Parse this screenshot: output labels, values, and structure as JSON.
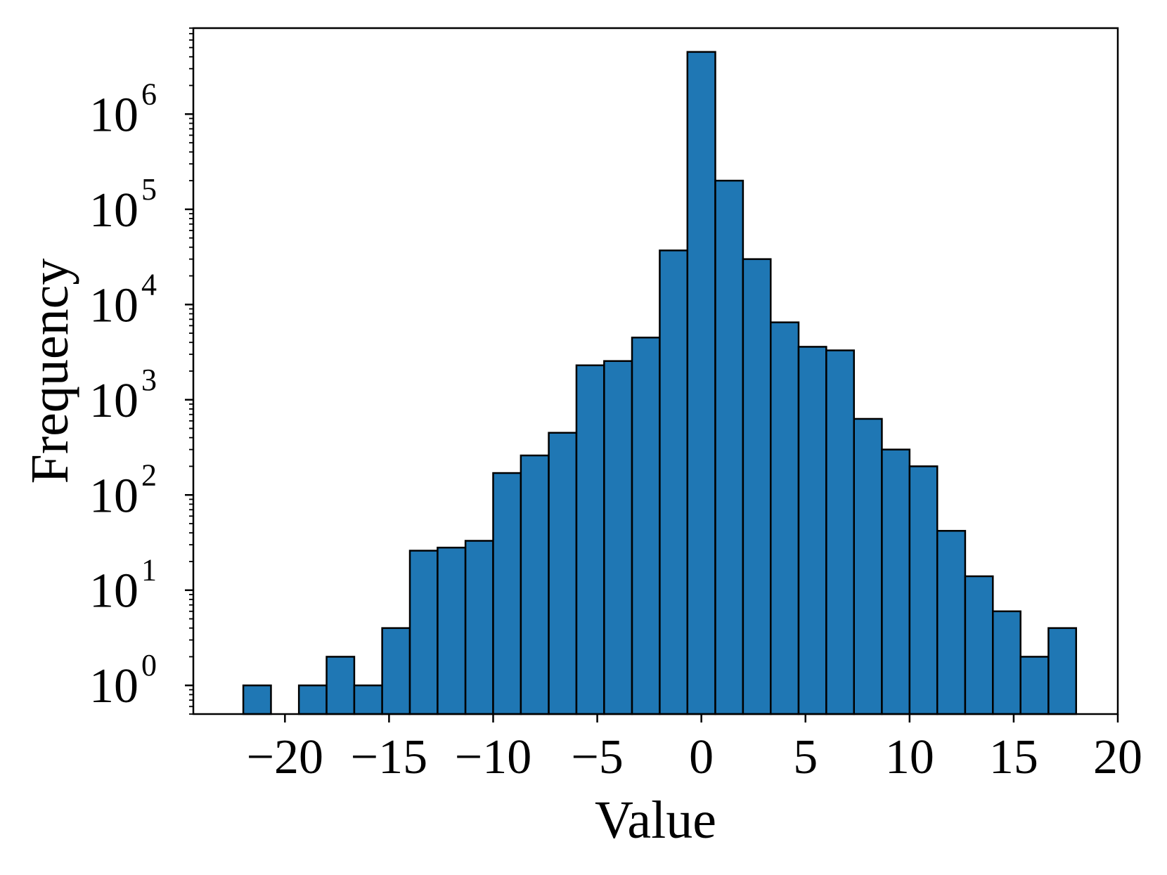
{
  "chart_data": {
    "type": "bar",
    "subtype": "histogram",
    "xlabel": "Value",
    "ylabel": "Frequency",
    "yscale": "log",
    "grid": false,
    "xlim": [
      -24.4,
      20
    ],
    "ylim": [
      0.5,
      8000000
    ],
    "xticks": [
      -20,
      -15,
      -10,
      -5,
      0,
      5,
      10,
      15,
      20
    ],
    "xtick_labels": [
      "−20",
      "−15",
      "−10",
      "−5",
      "0",
      "5",
      "10",
      "15",
      "20"
    ],
    "yticks": [
      1,
      10,
      100,
      1000,
      10000,
      100000,
      1000000
    ],
    "ytick_labels": [
      {
        "base": "10",
        "exp": "0"
      },
      {
        "base": "10",
        "exp": "1"
      },
      {
        "base": "10",
        "exp": "2"
      },
      {
        "base": "10",
        "exp": "3"
      },
      {
        "base": "10",
        "exp": "4"
      },
      {
        "base": "10",
        "exp": "5"
      },
      {
        "base": "10",
        "exp": "6"
      }
    ],
    "bar_color": "#1f77b4",
    "edge_color": "#000000",
    "bin_edges": [
      -22.0,
      -20.67,
      -19.33,
      -18.0,
      -16.67,
      -15.33,
      -14.0,
      -12.67,
      -11.33,
      -10.0,
      -8.67,
      -7.33,
      -6.0,
      -4.67,
      -3.33,
      -2.0,
      -0.67,
      0.67,
      2.0,
      3.33,
      4.67,
      6.0,
      7.33,
      8.67,
      10.0,
      11.33,
      12.67,
      14.0,
      15.33,
      16.67,
      18.0
    ],
    "counts": [
      1,
      0,
      1,
      2,
      1,
      4,
      26,
      28,
      33,
      170,
      260,
      450,
      2300,
      2550,
      4500,
      37000,
      4500000,
      200000,
      30000,
      6500,
      3600,
      3300,
      630,
      300,
      200,
      42,
      14,
      6,
      2,
      4
    ]
  }
}
